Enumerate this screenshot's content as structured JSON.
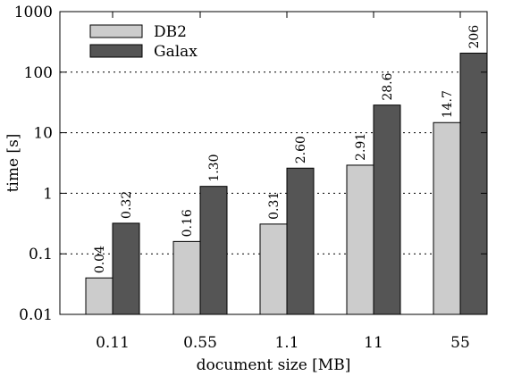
{
  "chart_data": {
    "type": "bar",
    "categories": [
      "0.11",
      "0.55",
      "1.1",
      "11",
      "55"
    ],
    "series": [
      {
        "name": "DB2",
        "values": [
          0.04,
          0.16,
          0.31,
          2.91,
          14.7
        ],
        "labels": [
          "0.04",
          "0.16",
          "0.31",
          "2.91",
          "14.7"
        ],
        "color": "#cccccc"
      },
      {
        "name": "Galax",
        "values": [
          0.32,
          1.3,
          2.6,
          28.6,
          206
        ],
        "labels": [
          "0.32",
          "1.30",
          "2.60",
          "28.6",
          "206"
        ],
        "color": "#555555"
      }
    ],
    "xlabel": "document size [MB]",
    "ylabel": "time [s]",
    "yscale": "log",
    "ylim": [
      0.01,
      1000
    ],
    "yticks": [
      0.01,
      0.1,
      1,
      10,
      100,
      1000
    ],
    "ytick_labels": [
      "0.01",
      "0.1",
      "1",
      "10",
      "100",
      "1000"
    ],
    "grid": "horizontal dotted",
    "legend_position": "top-left"
  }
}
